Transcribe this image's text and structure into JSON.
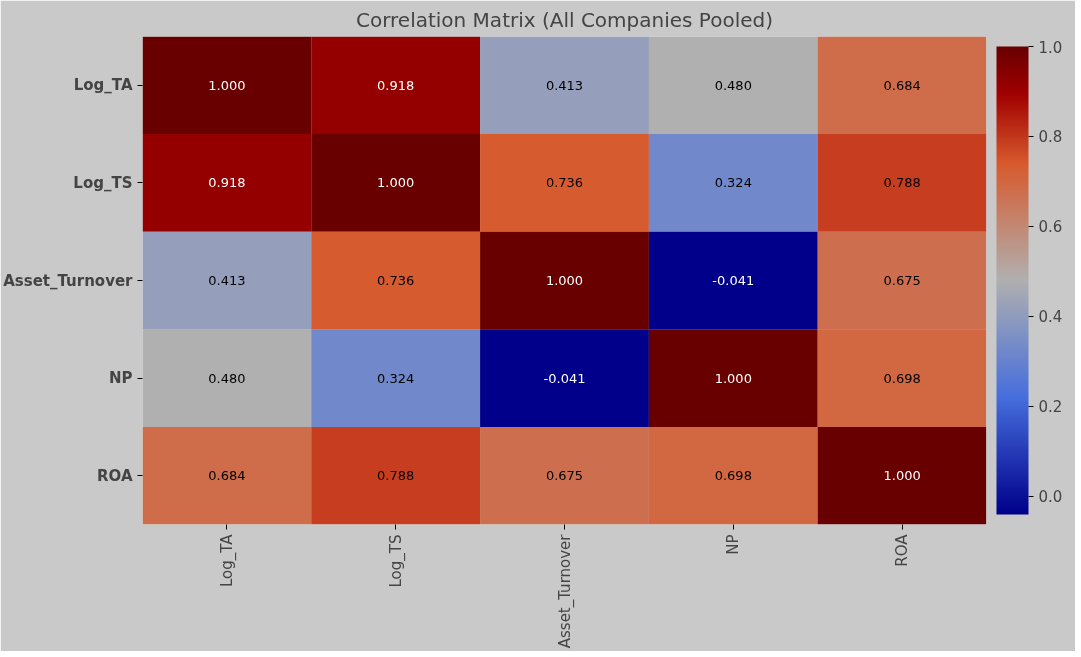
{
  "chart_data": {
    "type": "heatmap",
    "title": "Correlation Matrix (All Companies Pooled)",
    "categories": [
      "Log_TA",
      "Log_TS",
      "Asset_Turnover",
      "NP",
      "ROA"
    ],
    "y_categories": [
      "Log_TA",
      "Log_TS",
      "Asset_Turnover",
      "NP",
      "ROA"
    ],
    "cells": [
      [
        1.0,
        0.918,
        0.413,
        0.48,
        0.684
      ],
      [
        0.918,
        1.0,
        0.736,
        0.324,
        0.788
      ],
      [
        0.413,
        0.736,
        1.0,
        -0.041,
        0.675
      ],
      [
        0.48,
        0.324,
        -0.041,
        1.0,
        0.698
      ],
      [
        0.684,
        0.788,
        0.675,
        0.698,
        1.0
      ]
    ],
    "cell_labels": [
      [
        "1.000",
        "0.918",
        "0.413",
        "0.480",
        "0.684"
      ],
      [
        "0.918",
        "1.000",
        "0.736",
        "0.324",
        "0.788"
      ],
      [
        "0.413",
        "0.736",
        "1.000",
        "-0.041",
        "0.675"
      ],
      [
        "0.480",
        "0.324",
        "-0.041",
        "1.000",
        "0.698"
      ],
      [
        "0.684",
        "0.788",
        "0.675",
        "0.698",
        "1.000"
      ]
    ],
    "clim": [
      -0.041,
      1.0
    ],
    "cticks": [
      {
        "value": 0,
        "label": "0.0"
      },
      {
        "value": 0.2,
        "label": "0.2"
      },
      {
        "value": 0.4,
        "label": "0.4"
      },
      {
        "value": 0.6,
        "label": "0.6"
      },
      {
        "value": 0.8,
        "label": "0.8"
      },
      {
        "value": 1,
        "label": "1.0"
      }
    ]
  }
}
